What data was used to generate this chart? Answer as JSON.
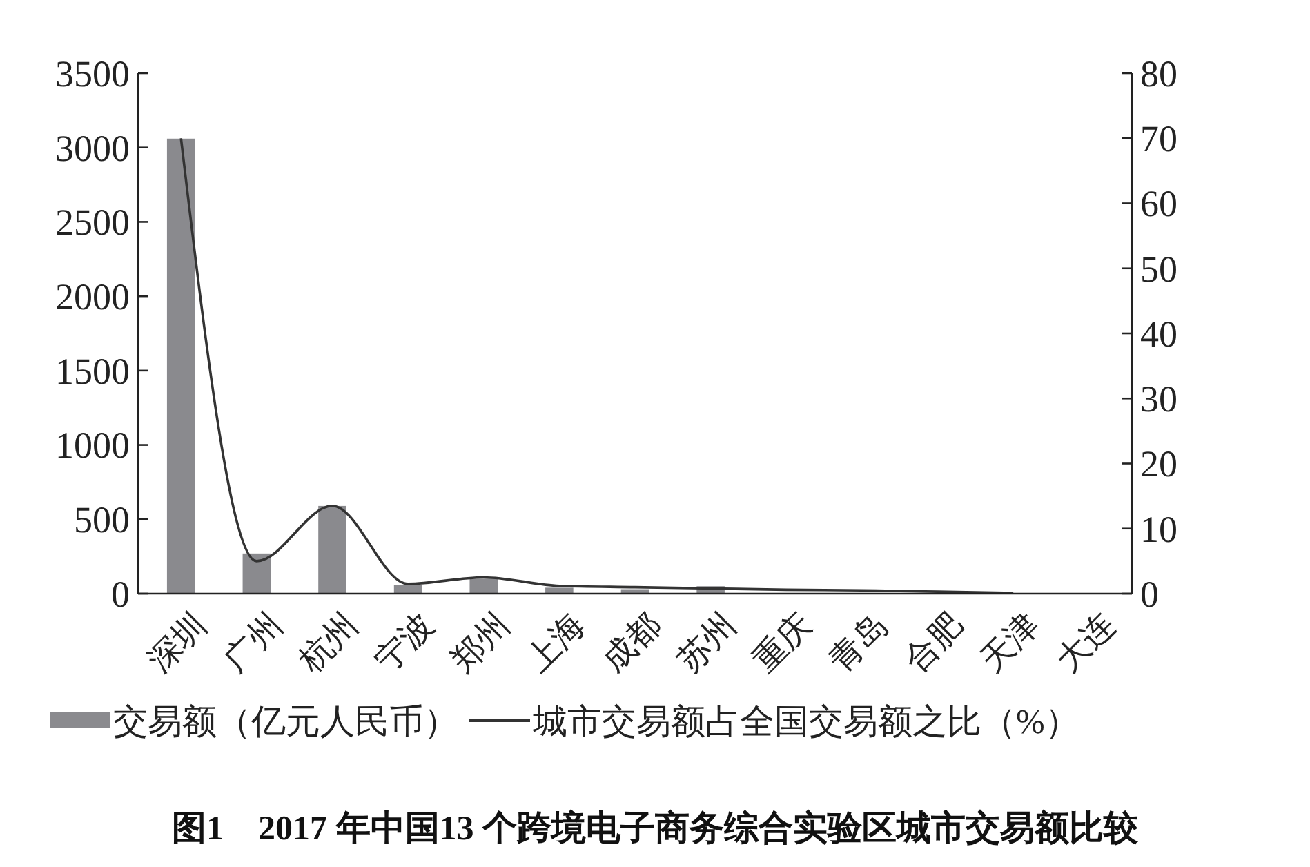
{
  "chart_data": {
    "type": "bar",
    "title": "图1　2017 年中国13 个跨境电子商务综合实验区城市交易额比较",
    "categories": [
      "深圳",
      "广州",
      "杭州",
      "宁波",
      "郑州",
      "上海",
      "成都",
      "苏州",
      "重庆",
      "青岛",
      "合肥",
      "天津",
      "大连"
    ],
    "series": [
      {
        "name": "交易额（亿元人民币）",
        "color": "#8a8a8e",
        "values": [
          3060,
          270,
          590,
          60,
          100,
          40,
          30,
          50,
          null,
          null,
          null,
          null,
          0
        ]
      },
      {
        "name": "城市交易额占全国交易额之比（%）",
        "type": "line",
        "axis": "y2",
        "color": "#333333",
        "values": [
          70,
          5,
          13.5,
          1.5,
          2.5,
          1.2,
          1,
          0.8,
          0.6,
          0.5,
          0.3,
          0.1,
          null
        ]
      }
    ],
    "ylim": [
      0,
      3500
    ],
    "yticks": [
      0,
      500,
      1000,
      1500,
      2000,
      2500,
      3000,
      3500
    ],
    "y2lim": [
      0,
      80
    ],
    "y2ticks": [
      0,
      10,
      20,
      30,
      40,
      50,
      60,
      70,
      80
    ],
    "legend": "bottom",
    "grid": false,
    "marker": "none",
    "line_style": "solid"
  }
}
